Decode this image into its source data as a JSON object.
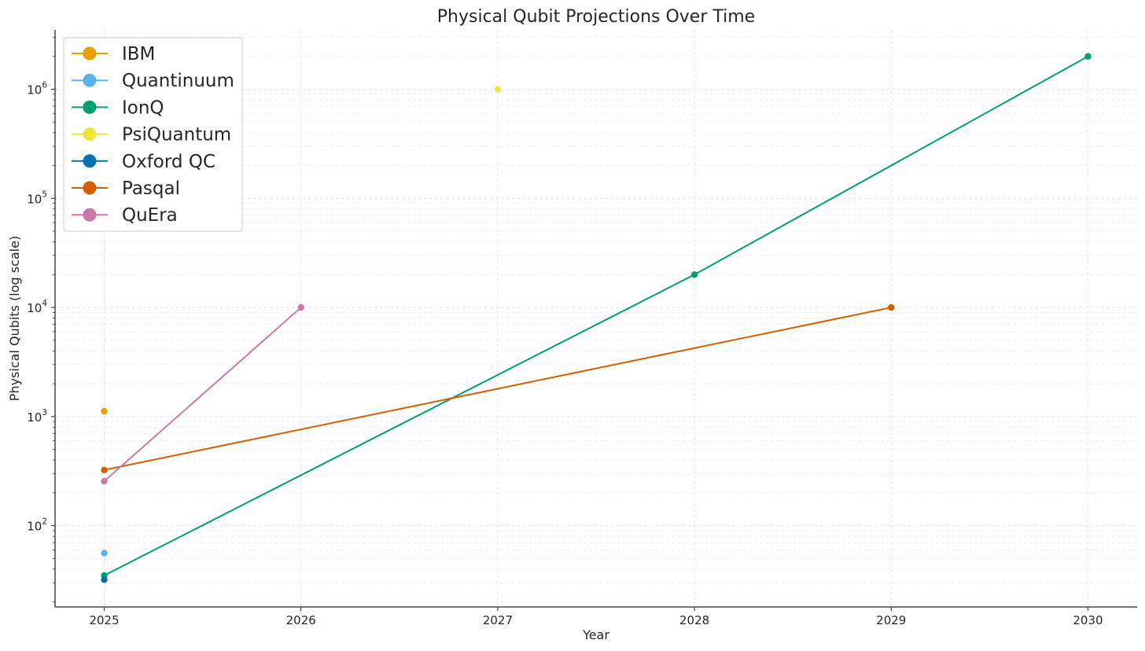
{
  "chart_data": {
    "type": "line",
    "title": "Physical Qubit Projections Over Time",
    "xlabel": "Year",
    "ylabel": "Physical Qubits (log scale)",
    "yscale": "log",
    "xlim": [
      2024.75,
      2030.25
    ],
    "ylim": [
      18,
      3500000
    ],
    "x_ticks": [
      2025,
      2026,
      2027,
      2028,
      2029,
      2030
    ],
    "x_tick_labels": [
      "2025",
      "2026",
      "2027",
      "2028",
      "2029",
      "2030"
    ],
    "y_ticks": [
      {
        "value": 100,
        "base": "10",
        "exp": "2"
      },
      {
        "value": 1000,
        "base": "10",
        "exp": "3"
      },
      {
        "value": 10000,
        "base": "10",
        "exp": "4"
      },
      {
        "value": 100000,
        "base": "10",
        "exp": "5"
      },
      {
        "value": 1000000,
        "base": "10",
        "exp": "6"
      }
    ],
    "grid": true,
    "legend_position": "top-left",
    "series": [
      {
        "name": "IBM",
        "color": "#E69F00",
        "points": [
          [
            2025,
            1121
          ]
        ]
      },
      {
        "name": "Quantinuum",
        "color": "#56B4E9",
        "points": [
          [
            2025,
            56
          ]
        ]
      },
      {
        "name": "IonQ",
        "color": "#009E73",
        "points": [
          [
            2025,
            35
          ],
          [
            2028,
            20000
          ],
          [
            2030,
            2000000
          ]
        ]
      },
      {
        "name": "PsiQuantum",
        "color": "#F0E442",
        "points": [
          [
            2027,
            1000000
          ]
        ]
      },
      {
        "name": "Oxford QC",
        "color": "#0072B2",
        "points": [
          [
            2025,
            32
          ]
        ]
      },
      {
        "name": "Pasqal",
        "color": "#D55E00",
        "points": [
          [
            2025,
            324
          ],
          [
            2029,
            10000
          ]
        ]
      },
      {
        "name": "QuEra",
        "color": "#CC79A7",
        "points": [
          [
            2025,
            256
          ],
          [
            2026,
            10000
          ]
        ]
      }
    ]
  }
}
